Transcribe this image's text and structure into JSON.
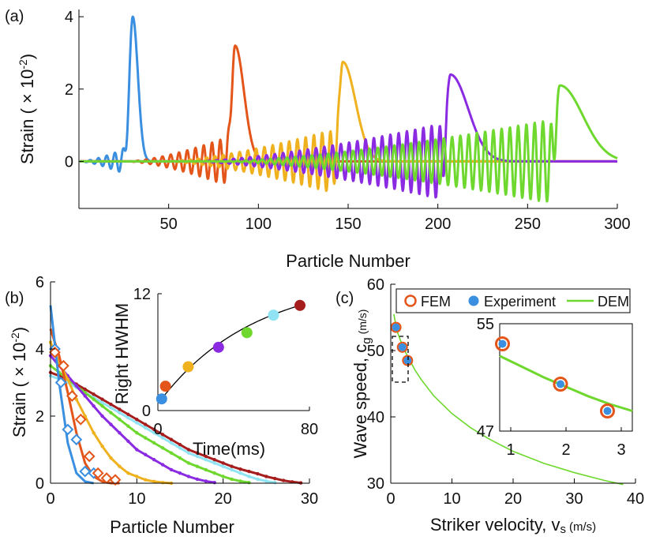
{
  "panel_labels": [
    "(a)",
    "(b)",
    "(c)"
  ],
  "chart_data": [
    {
      "panel": "(a)",
      "type": "line",
      "xlabel": "Particle Number",
      "ylabel_main": "Strain ( × 10",
      "ylabel_exp": "-2",
      "ylabel_end": ")",
      "xlim": [
        0,
        300
      ],
      "ylim": [
        -1.3,
        4.2
      ],
      "xticks": [
        50,
        100,
        150,
        200,
        250,
        300
      ],
      "yticks": [
        0,
        2,
        4
      ],
      "grid": false,
      "series": [
        {
          "color": "#3a8fe0",
          "peak_x": 30,
          "peak_y": 4.0,
          "osc_amp": 0.45,
          "trail_len": 30,
          "right_width": 4
        },
        {
          "color": "#e4551a",
          "peak_x": 87,
          "peak_y": 3.2,
          "osc_amp": 0.75,
          "trail_len": 60,
          "right_width": 7
        },
        {
          "color": "#f0b11e",
          "peak_x": 147,
          "peak_y": 2.75,
          "osc_amp": 0.95,
          "trail_len": 100,
          "right_width": 10
        },
        {
          "color": "#8a2be2",
          "peak_x": 207,
          "peak_y": 2.4,
          "osc_amp": 1.1,
          "trail_len": 145,
          "right_width": 14
        },
        {
          "color": "#6ed82e",
          "peak_x": 268,
          "peak_y": 2.1,
          "osc_amp": 1.2,
          "trail_len": 190,
          "right_width": 18
        }
      ]
    },
    {
      "panel": "(b)",
      "type": "line",
      "xlabel": "Particle Number",
      "ylabel_main": "Strain ( × 10",
      "ylabel_exp": "-2",
      "ylabel_end": ")",
      "xlim": [
        0,
        30
      ],
      "ylim": [
        0,
        6
      ],
      "xticks": [
        0,
        10,
        20,
        30
      ],
      "yticks": [
        0,
        2,
        4,
        6
      ],
      "series": [
        {
          "color": "#3a8fe0",
          "values": [
            5.3,
            3.0,
            1.2,
            0.3,
            0.05,
            0.0
          ]
        },
        {
          "color": "#e4551a",
          "values": [
            4.6,
            3.8,
            2.7,
            1.5,
            0.6,
            0.2,
            0.05,
            0.0,
            0.0
          ]
        },
        {
          "color": "#f0b11e",
          "values": [
            4.2,
            3.6,
            3.1,
            2.5,
            2.0,
            1.5,
            1.1,
            0.75,
            0.5,
            0.3,
            0.2,
            0.1,
            0.05,
            0.02,
            0.0
          ]
        },
        {
          "color": "#8a2be2",
          "values": [
            3.8,
            3.5,
            3.2,
            2.9,
            2.6,
            2.3,
            2.0,
            1.75,
            1.5,
            1.25,
            1.0,
            0.85,
            0.7,
            0.55,
            0.4,
            0.3,
            0.2,
            0.12,
            0.06,
            0.02
          ]
        },
        {
          "color": "#6ed82e",
          "values": [
            3.5,
            3.3,
            3.1,
            2.9,
            2.7,
            2.5,
            2.3,
            2.1,
            1.9,
            1.7,
            1.5,
            1.35,
            1.2,
            1.05,
            0.9,
            0.75,
            0.6,
            0.5,
            0.4,
            0.3,
            0.2,
            0.12,
            0.06,
            0.02
          ]
        },
        {
          "color": "#8fe3f2",
          "values": [
            3.2,
            3.1,
            3.0,
            2.85,
            2.7,
            2.55,
            2.4,
            2.25,
            2.1,
            1.95,
            1.8,
            1.65,
            1.5,
            1.35,
            1.2,
            1.05,
            0.9,
            0.8,
            0.7,
            0.6,
            0.5,
            0.4,
            0.3,
            0.2,
            0.12,
            0.06,
            0.02
          ]
        },
        {
          "color": "#a51d1d",
          "values": [
            3.3,
            3.2,
            3.1,
            2.95,
            2.8,
            2.65,
            2.5,
            2.35,
            2.2,
            2.05,
            1.9,
            1.75,
            1.6,
            1.45,
            1.3,
            1.15,
            1.0,
            0.9,
            0.8,
            0.7,
            0.6,
            0.5,
            0.42,
            0.35,
            0.28,
            0.2,
            0.14,
            0.08,
            0.04,
            0.01
          ]
        }
      ],
      "experiment_markers": {
        "color": "#3a8fe0",
        "points": [
          [
            0.5,
            4.0
          ],
          [
            1.2,
            3.0
          ],
          [
            2.0,
            1.6
          ],
          [
            3.0,
            1.3
          ],
          [
            4.0,
            0.35
          ],
          [
            5.0,
            0.3
          ]
        ]
      },
      "experiment_markers_2": {
        "color": "#e4551a",
        "points": [
          [
            0.5,
            3.9
          ],
          [
            1.5,
            3.5
          ],
          [
            2.5,
            2.6
          ],
          [
            3.5,
            1.9
          ],
          [
            4.5,
            0.8
          ],
          [
            5.5,
            0.3
          ],
          [
            6.5,
            0.15
          ],
          [
            7.5,
            0.1
          ]
        ]
      },
      "inset": {
        "type": "scatter",
        "xlabel": "Time(ms)",
        "ylabel": "Right HWHM",
        "xlim": [
          0,
          80
        ],
        "ylim": [
          0,
          12
        ],
        "xticks": [
          0,
          80
        ],
        "yticks": [
          0,
          12
        ],
        "points": [
          {
            "x": 2,
            "y": 1.2,
            "color": "#3a8fe0"
          },
          {
            "x": 4,
            "y": 2.5,
            "color": "#e4551a"
          },
          {
            "x": 16,
            "y": 4.5,
            "color": "#f0b11e"
          },
          {
            "x": 32,
            "y": 6.5,
            "color": "#8a2be2"
          },
          {
            "x": 47,
            "y": 8.0,
            "color": "#6ed82e"
          },
          {
            "x": 61,
            "y": 9.8,
            "color": "#8fe3f2"
          },
          {
            "x": 75,
            "y": 10.8,
            "color": "#a51d1d"
          }
        ]
      }
    },
    {
      "panel": "(c)",
      "type": "line",
      "xlabel_main": "Striker velocity, v",
      "xlabel_sub": "s",
      "xlabel_unit": "(m/s)",
      "ylabel_main": "Wave speed, c",
      "ylabel_sub": "g",
      "ylabel_unit": "(m/s)",
      "xlim": [
        0,
        40
      ],
      "ylim": [
        30,
        60
      ],
      "xticks": [
        0,
        10,
        20,
        30,
        40
      ],
      "yticks": [
        30,
        40,
        50,
        60
      ],
      "legend": {
        "placement": "top",
        "entries": [
          "FEM",
          "Experiment",
          "DEM"
        ]
      },
      "series": [
        {
          "name": "FEM",
          "color": "#e4551a",
          "marker": "open-circle",
          "points": [
            [
              0.85,
              53.5
            ],
            [
              1.9,
              50.5
            ],
            [
              2.75,
              48.5
            ]
          ]
        },
        {
          "name": "Experiment",
          "color": "#3a8fe0",
          "marker": "filled-circle",
          "points": [
            [
              0.85,
              53.5
            ],
            [
              1.9,
              50.5
            ],
            [
              2.75,
              48.5
            ]
          ]
        },
        {
          "name": "DEM",
          "color": "#6ed82e",
          "marker": "line",
          "x": [
            0.5,
            1,
            2,
            3,
            4,
            5,
            7,
            10,
            13,
            16,
            20,
            25,
            30,
            35,
            38
          ],
          "y": [
            55.5,
            53.0,
            50.5,
            48.7,
            47.0,
            45.6,
            43.2,
            40.5,
            38.4,
            36.7,
            34.8,
            33.0,
            31.6,
            30.4,
            29.8
          ]
        }
      ],
      "inset": {
        "xlim": [
          0.8,
          3.2
        ],
        "ylim": [
          47,
          55
        ],
        "xticks": [
          1,
          2,
          3
        ],
        "yticks": [
          47,
          55
        ],
        "dem_x": [
          0.8,
          1.2,
          1.6,
          2.0,
          2.4,
          2.8,
          3.2
        ],
        "dem_y": [
          52.6,
          51.8,
          51.0,
          50.3,
          49.6,
          49.0,
          48.5
        ]
      }
    }
  ]
}
